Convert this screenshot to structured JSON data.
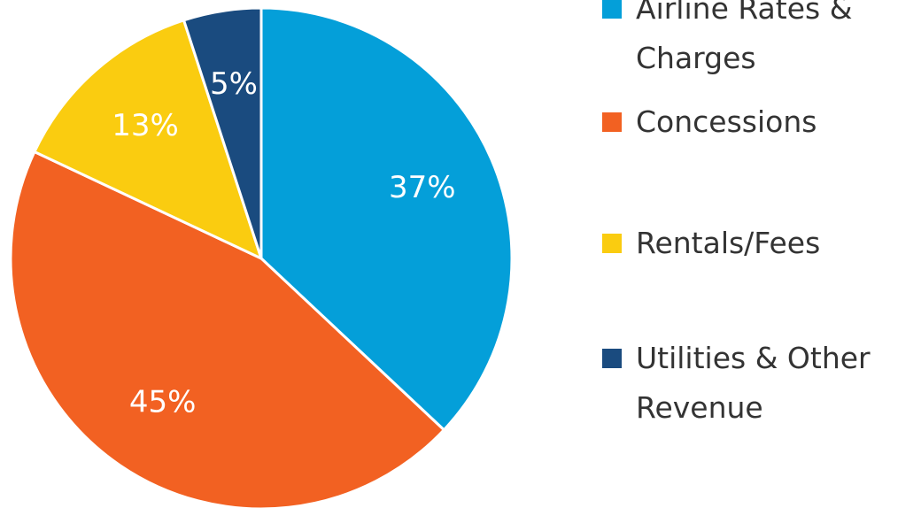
{
  "chart_data": {
    "type": "pie",
    "categories": [
      "Airline Rates & Charges",
      "Concessions",
      "Rentals/Fees",
      "Utilities & Other Revenue"
    ],
    "values": [
      37,
      45,
      13,
      5
    ],
    "value_labels": [
      "37%",
      "45%",
      "13%",
      "5%"
    ],
    "colors": [
      "#049fd9",
      "#f26122",
      "#facc10",
      "#1a4b7f"
    ],
    "legend": "right"
  }
}
